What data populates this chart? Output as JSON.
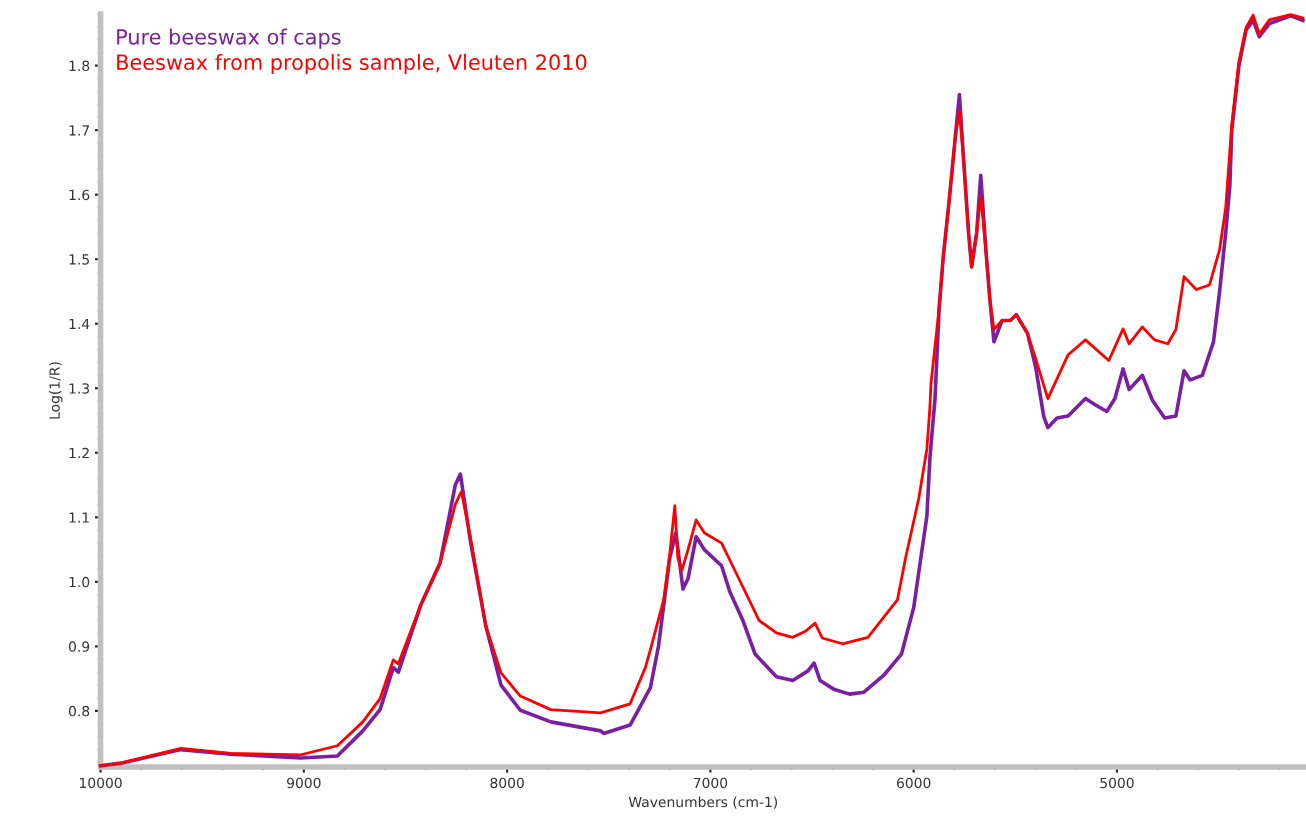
{
  "chart_data": {
    "type": "line",
    "xlabel": "Wavenumbers (cm-1)",
    "ylabel": "Log(1/R)",
    "xlim": [
      10000,
      4070
    ],
    "xticks": [
      10000,
      9000,
      8000,
      7000,
      6000,
      5000
    ],
    "ylim": [
      0.713,
      1.88
    ],
    "yticks": [
      0.8,
      0.9,
      {
        "value": 1.0,
        "label": "1.0"
      },
      1.1,
      1.2,
      1.3,
      1.4,
      1.5,
      1.6,
      1.7,
      1.8
    ],
    "grid": false,
    "legend": "top left",
    "marker": "none",
    "line_style": "solid",
    "series": [
      {
        "name": "Pure beeswax of caps",
        "color": "#7b1fa2",
        "x": [
          10000,
          9900,
          9605,
          9360,
          9015,
          8835,
          8710,
          8625,
          8560,
          8535,
          8425,
          8330,
          8255,
          8230,
          8180,
          8105,
          8030,
          7935,
          7785,
          7540,
          7525,
          7395,
          7295,
          7255,
          7200,
          7170,
          7135,
          7110,
          7070,
          7030,
          6945,
          6905,
          6840,
          6780,
          6675,
          6595,
          6520,
          6490,
          6460,
          6390,
          6315,
          6245,
          6145,
          6060,
          6000,
          5935,
          5920,
          5895,
          5875,
          5855,
          5825,
          5795,
          5775,
          5755,
          5730,
          5715,
          5690,
          5670,
          5645,
          5625,
          5605,
          5565,
          5525,
          5495,
          5440,
          5400,
          5360,
          5340,
          5295,
          5240,
          5155,
          5105,
          5050,
          5010,
          4970,
          4940,
          4875,
          4825,
          4765,
          4710,
          4670,
          4640,
          4580,
          4525,
          4495,
          4465,
          4445,
          4435,
          4400,
          4365,
          4330,
          4300,
          4250,
          4145,
          4085
        ],
        "values": [
          0.715,
          0.719,
          0.74,
          0.733,
          0.727,
          0.73,
          0.769,
          0.802,
          0.867,
          0.86,
          0.964,
          1.029,
          1.15,
          1.167,
          1.062,
          0.932,
          0.84,
          0.801,
          0.783,
          0.769,
          0.765,
          0.778,
          0.836,
          0.901,
          1.037,
          1.076,
          0.989,
          1.005,
          1.07,
          1.05,
          1.025,
          0.985,
          0.94,
          0.888,
          0.853,
          0.847,
          0.862,
          0.874,
          0.847,
          0.833,
          0.826,
          0.829,
          0.856,
          0.888,
          0.96,
          1.102,
          1.193,
          1.284,
          1.423,
          1.502,
          1.592,
          1.69,
          1.755,
          1.657,
          1.541,
          1.488,
          1.541,
          1.63,
          1.515,
          1.437,
          1.372,
          1.405,
          1.405,
          1.414,
          1.385,
          1.333,
          1.256,
          1.239,
          1.254,
          1.257,
          1.284,
          1.274,
          1.264,
          1.284,
          1.33,
          1.298,
          1.32,
          1.281,
          1.254,
          1.257,
          1.327,
          1.313,
          1.32,
          1.372,
          1.45,
          1.541,
          1.612,
          1.7,
          1.8,
          1.855,
          1.87,
          1.845,
          1.865,
          1.877,
          1.87
        ]
      },
      {
        "name": "Beeswax from propolis sample, Vleuten 2010",
        "color": "#ff0000",
        "x": [
          10000,
          9900,
          9605,
          9360,
          9015,
          8835,
          8710,
          8625,
          8560,
          8535,
          8425,
          8330,
          8255,
          8225,
          8180,
          8105,
          8030,
          7935,
          7785,
          7540,
          7395,
          7320,
          7295,
          7230,
          7200,
          7175,
          7160,
          7140,
          7110,
          7070,
          7030,
          6945,
          6840,
          6760,
          6675,
          6595,
          6530,
          6485,
          6450,
          6350,
          6225,
          6145,
          6080,
          6040,
          5975,
          5935,
          5920,
          5915,
          5875,
          5855,
          5825,
          5795,
          5775,
          5755,
          5730,
          5715,
          5690,
          5670,
          5645,
          5625,
          5605,
          5565,
          5525,
          5495,
          5440,
          5400,
          5340,
          5240,
          5155,
          5040,
          4970,
          4940,
          4875,
          4815,
          4750,
          4710,
          4670,
          4610,
          4545,
          4495,
          4465,
          4435,
          4400,
          4365,
          4330,
          4300,
          4250,
          4145,
          4085
        ],
        "values": [
          0.715,
          0.719,
          0.742,
          0.734,
          0.732,
          0.746,
          0.783,
          0.819,
          0.879,
          0.873,
          0.964,
          1.029,
          1.12,
          1.14,
          1.068,
          0.932,
          0.859,
          0.823,
          0.802,
          0.797,
          0.811,
          0.867,
          0.895,
          0.972,
          1.043,
          1.118,
          1.037,
          1.018,
          1.05,
          1.096,
          1.076,
          1.06,
          0.992,
          0.94,
          0.921,
          0.914,
          0.924,
          0.936,
          0.913,
          0.904,
          0.914,
          0.946,
          0.972,
          1.037,
          1.129,
          1.206,
          1.271,
          1.307,
          1.423,
          1.502,
          1.592,
          1.69,
          1.729,
          1.657,
          1.541,
          1.488,
          1.541,
          1.598,
          1.515,
          1.437,
          1.391,
          1.405,
          1.405,
          1.414,
          1.385,
          1.346,
          1.284,
          1.352,
          1.375,
          1.343,
          1.392,
          1.369,
          1.395,
          1.375,
          1.369,
          1.391,
          1.473,
          1.453,
          1.46,
          1.515,
          1.58,
          1.709,
          1.806,
          1.859,
          1.878,
          1.849,
          1.871,
          1.879,
          1.874
        ]
      }
    ]
  }
}
